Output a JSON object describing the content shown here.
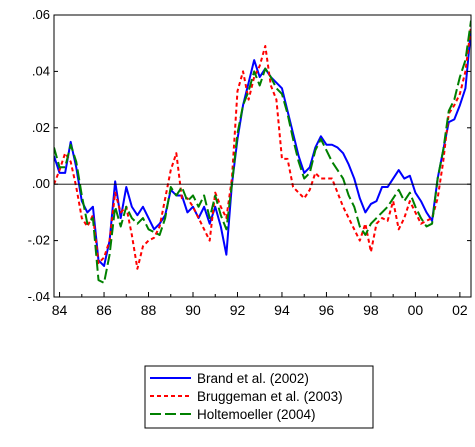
{
  "chart_data": {
    "type": "line",
    "title": "",
    "xlabel": "",
    "ylabel": "",
    "xlim": [
      1983.75,
      2002.5
    ],
    "ylim": [
      -0.04,
      0.06
    ],
    "y_ticks": [
      -0.04,
      -0.02,
      0.0,
      0.02,
      0.04,
      0.06
    ],
    "y_tick_labels": [
      "-.04",
      "-.02",
      ".00",
      ".02",
      ".04",
      ".06"
    ],
    "x_ticks": [
      1984,
      1986,
      1988,
      1990,
      1992,
      1994,
      1996,
      1998,
      2000,
      2002
    ],
    "x_tick_labels": [
      "84",
      "86",
      "88",
      "90",
      "92",
      "94",
      "96",
      "98",
      "00",
      "02"
    ],
    "grid": false,
    "zero_line": true,
    "legend_position": "bottom",
    "series": [
      {
        "name": "Brand et al. (2002)",
        "color": "#0000ff",
        "dash": "solid",
        "points": [
          [
            1983.75,
            0.01
          ],
          [
            1984.0,
            0.004
          ],
          [
            1984.25,
            0.004
          ],
          [
            1984.5,
            0.015
          ],
          [
            1984.75,
            0.006
          ],
          [
            1985.0,
            -0.006
          ],
          [
            1985.25,
            -0.01
          ],
          [
            1985.5,
            -0.008
          ],
          [
            1985.75,
            -0.027
          ],
          [
            1986.0,
            -0.029
          ],
          [
            1986.25,
            -0.02
          ],
          [
            1986.5,
            0.001
          ],
          [
            1986.75,
            -0.012
          ],
          [
            1987.0,
            -0.001
          ],
          [
            1987.25,
            -0.008
          ],
          [
            1987.5,
            -0.011
          ],
          [
            1987.75,
            -0.008
          ],
          [
            1988.0,
            -0.012
          ],
          [
            1988.25,
            -0.016
          ],
          [
            1988.5,
            -0.014
          ],
          [
            1988.75,
            -0.011
          ],
          [
            1989.0,
            -0.002
          ],
          [
            1989.25,
            -0.004
          ],
          [
            1989.5,
            -0.004
          ],
          [
            1989.75,
            -0.01
          ],
          [
            1990.0,
            -0.008
          ],
          [
            1990.25,
            -0.012
          ],
          [
            1990.5,
            -0.008
          ],
          [
            1990.75,
            -0.014
          ],
          [
            1991.0,
            -0.008
          ],
          [
            1991.25,
            -0.015
          ],
          [
            1991.5,
            -0.025
          ],
          [
            1991.75,
            0.0
          ],
          [
            1992.0,
            0.016
          ],
          [
            1992.25,
            0.028
          ],
          [
            1992.5,
            0.036
          ],
          [
            1992.75,
            0.044
          ],
          [
            1993.0,
            0.038
          ],
          [
            1993.25,
            0.041
          ],
          [
            1993.5,
            0.038
          ],
          [
            1993.75,
            0.036
          ],
          [
            1994.0,
            0.034
          ],
          [
            1994.25,
            0.026
          ],
          [
            1994.5,
            0.018
          ],
          [
            1994.75,
            0.01
          ],
          [
            1995.0,
            0.004
          ],
          [
            1995.25,
            0.006
          ],
          [
            1995.5,
            0.013
          ],
          [
            1995.75,
            0.017
          ],
          [
            1996.0,
            0.014
          ],
          [
            1996.25,
            0.014
          ],
          [
            1996.5,
            0.013
          ],
          [
            1996.75,
            0.011
          ],
          [
            1997.0,
            0.007
          ],
          [
            1997.25,
            0.002
          ],
          [
            1997.5,
            -0.005
          ],
          [
            1997.75,
            -0.01
          ],
          [
            1998.0,
            -0.007
          ],
          [
            1998.25,
            -0.006
          ],
          [
            1998.5,
            -0.001
          ],
          [
            1998.75,
            -0.001
          ],
          [
            1999.0,
            0.002
          ],
          [
            1999.25,
            0.005
          ],
          [
            1999.5,
            0.002
          ],
          [
            1999.75,
            0.003
          ],
          [
            2000.0,
            -0.003
          ],
          [
            2000.25,
            -0.006
          ],
          [
            2000.5,
            -0.01
          ],
          [
            2000.75,
            -0.013
          ],
          [
            2001.0,
            0.002
          ],
          [
            2001.25,
            0.012
          ],
          [
            2001.5,
            0.022
          ],
          [
            2001.75,
            0.023
          ],
          [
            2002.0,
            0.028
          ],
          [
            2002.25,
            0.034
          ],
          [
            2002.5,
            0.055
          ]
        ]
      },
      {
        "name": "Bruggeman et al. (2003)",
        "color": "#ff0000",
        "dash": "short-dash",
        "points": [
          [
            1983.75,
            0.0
          ],
          [
            1984.0,
            0.005
          ],
          [
            1984.25,
            0.011
          ],
          [
            1984.5,
            0.008
          ],
          [
            1984.75,
            -0.001
          ],
          [
            1985.0,
            -0.012
          ],
          [
            1985.25,
            -0.015
          ],
          [
            1985.5,
            -0.011
          ],
          [
            1985.75,
            -0.028
          ],
          [
            1986.0,
            -0.026
          ],
          [
            1986.25,
            -0.02
          ],
          [
            1986.5,
            -0.003
          ],
          [
            1986.75,
            -0.01
          ],
          [
            1987.0,
            -0.008
          ],
          [
            1987.25,
            -0.018
          ],
          [
            1987.5,
            -0.03
          ],
          [
            1987.75,
            -0.022
          ],
          [
            1988.0,
            -0.02
          ],
          [
            1988.25,
            -0.019
          ],
          [
            1988.5,
            -0.015
          ],
          [
            1988.75,
            -0.005
          ],
          [
            1989.0,
            0.005
          ],
          [
            1989.25,
            0.011
          ],
          [
            1989.5,
            -0.005
          ],
          [
            1989.75,
            -0.005
          ],
          [
            1990.0,
            -0.008
          ],
          [
            1990.25,
            -0.012
          ],
          [
            1990.5,
            -0.016
          ],
          [
            1990.75,
            -0.02
          ],
          [
            1991.0,
            -0.003
          ],
          [
            1991.25,
            -0.008
          ],
          [
            1991.5,
            -0.012
          ],
          [
            1991.75,
            0.002
          ],
          [
            1992.0,
            0.033
          ],
          [
            1992.25,
            0.04
          ],
          [
            1992.5,
            0.03
          ],
          [
            1992.75,
            0.038
          ],
          [
            1993.0,
            0.042
          ],
          [
            1993.25,
            0.049
          ],
          [
            1993.5,
            0.035
          ],
          [
            1993.75,
            0.03
          ],
          [
            1994.0,
            0.009
          ],
          [
            1994.25,
            0.009
          ],
          [
            1994.5,
            -0.001
          ],
          [
            1994.75,
            -0.003
          ],
          [
            1995.0,
            -0.005
          ],
          [
            1995.25,
            -0.002
          ],
          [
            1995.5,
            0.004
          ],
          [
            1995.75,
            0.002
          ],
          [
            1996.0,
            0.002
          ],
          [
            1996.25,
            0.002
          ],
          [
            1996.5,
            -0.003
          ],
          [
            1996.75,
            -0.008
          ],
          [
            1997.0,
            -0.012
          ],
          [
            1997.25,
            -0.016
          ],
          [
            1997.5,
            -0.02
          ],
          [
            1997.75,
            -0.014
          ],
          [
            1998.0,
            -0.024
          ],
          [
            1998.25,
            -0.014
          ],
          [
            1998.5,
            -0.012
          ],
          [
            1998.75,
            -0.013
          ],
          [
            1999.0,
            -0.006
          ],
          [
            1999.25,
            -0.016
          ],
          [
            1999.5,
            -0.012
          ],
          [
            1999.75,
            -0.006
          ],
          [
            2000.0,
            -0.01
          ],
          [
            2000.25,
            -0.014
          ],
          [
            2000.5,
            -0.013
          ],
          [
            2000.75,
            -0.012
          ],
          [
            2001.0,
            -0.005
          ],
          [
            2001.25,
            0.008
          ],
          [
            2001.5,
            0.025
          ],
          [
            2001.75,
            0.028
          ],
          [
            2002.0,
            0.032
          ],
          [
            2002.25,
            0.04
          ],
          [
            2002.5,
            0.056
          ]
        ]
      },
      {
        "name": "Holtemoeller (2004)",
        "color": "#008000",
        "dash": "long-dash",
        "points": [
          [
            1983.75,
            0.013
          ],
          [
            1984.0,
            0.006
          ],
          [
            1984.25,
            0.006
          ],
          [
            1984.5,
            0.014
          ],
          [
            1984.75,
            0.008
          ],
          [
            1985.0,
            -0.004
          ],
          [
            1985.25,
            -0.014
          ],
          [
            1985.5,
            -0.012
          ],
          [
            1985.75,
            -0.034
          ],
          [
            1986.0,
            -0.035
          ],
          [
            1986.25,
            -0.025
          ],
          [
            1986.5,
            -0.008
          ],
          [
            1986.75,
            -0.015
          ],
          [
            1987.0,
            -0.008
          ],
          [
            1987.25,
            -0.012
          ],
          [
            1987.5,
            -0.014
          ],
          [
            1987.75,
            -0.012
          ],
          [
            1988.0,
            -0.016
          ],
          [
            1988.25,
            -0.017
          ],
          [
            1988.5,
            -0.018
          ],
          [
            1988.75,
            -0.012
          ],
          [
            1989.0,
            -0.001
          ],
          [
            1989.25,
            -0.004
          ],
          [
            1989.5,
            -0.001
          ],
          [
            1989.75,
            -0.006
          ],
          [
            1990.0,
            -0.004
          ],
          [
            1990.25,
            -0.008
          ],
          [
            1990.5,
            -0.004
          ],
          [
            1990.75,
            -0.012
          ],
          [
            1991.0,
            -0.004
          ],
          [
            1991.25,
            -0.011
          ],
          [
            1991.5,
            -0.016
          ],
          [
            1991.75,
            0.0
          ],
          [
            1992.0,
            0.018
          ],
          [
            1992.25,
            0.028
          ],
          [
            1992.5,
            0.033
          ],
          [
            1992.75,
            0.04
          ],
          [
            1993.0,
            0.035
          ],
          [
            1993.25,
            0.041
          ],
          [
            1993.5,
            0.038
          ],
          [
            1993.75,
            0.034
          ],
          [
            1994.0,
            0.032
          ],
          [
            1994.25,
            0.025
          ],
          [
            1994.5,
            0.016
          ],
          [
            1994.75,
            0.008
          ],
          [
            1995.0,
            0.002
          ],
          [
            1995.25,
            0.004
          ],
          [
            1995.5,
            0.012
          ],
          [
            1995.75,
            0.016
          ],
          [
            1996.0,
            0.012
          ],
          [
            1996.25,
            0.008
          ],
          [
            1996.5,
            0.005
          ],
          [
            1996.75,
            0.002
          ],
          [
            1997.0,
            -0.004
          ],
          [
            1997.25,
            -0.008
          ],
          [
            1997.5,
            -0.015
          ],
          [
            1997.75,
            -0.018
          ],
          [
            1998.0,
            -0.014
          ],
          [
            1998.25,
            -0.012
          ],
          [
            1998.5,
            -0.01
          ],
          [
            1998.75,
            -0.008
          ],
          [
            1999.0,
            -0.005
          ],
          [
            1999.25,
            -0.002
          ],
          [
            1999.5,
            -0.006
          ],
          [
            1999.75,
            -0.003
          ],
          [
            2000.0,
            -0.008
          ],
          [
            2000.25,
            -0.012
          ],
          [
            2000.5,
            -0.015
          ],
          [
            2000.75,
            -0.014
          ],
          [
            2001.0,
            0.002
          ],
          [
            2001.25,
            0.012
          ],
          [
            2001.5,
            0.026
          ],
          [
            2001.75,
            0.03
          ],
          [
            2002.0,
            0.038
          ],
          [
            2002.25,
            0.044
          ],
          [
            2002.5,
            0.058
          ]
        ]
      }
    ]
  }
}
